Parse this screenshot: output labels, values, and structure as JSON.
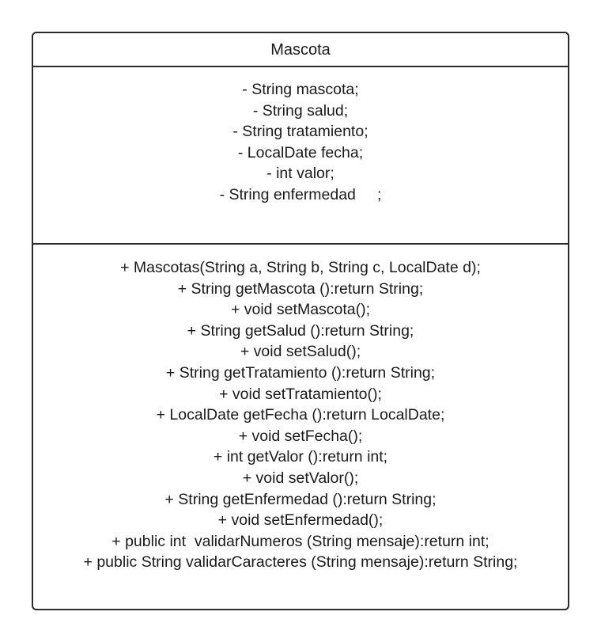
{
  "class": {
    "name": "Mascota",
    "attributes": [
      "- String mascota;",
      "- String salud;",
      "- String tratamiento;",
      "- LocalDate fecha;",
      "- int valor;",
      "- String enfermedad     ;"
    ],
    "methods": [
      "+ Mascotas(String a, String b, String c, LocalDate d);",
      "+ String getMascota ():return String;",
      "+ void setMascota();",
      "+ String getSalud ():return String;",
      "+ void setSalud();",
      "+ String getTratamiento ():return String;",
      "+ void setTratamiento();",
      "+ LocalDate getFecha ():return LocalDate;",
      "+ void setFecha();",
      "+ int getValor ():return int;",
      "+ void setValor();",
      "+ String getEnfermedad ():return String;",
      "+ void setEnfermedad();",
      "+ public int  validarNumeros (String mensaje):return int;",
      "+ public String validarCaracteres (String mensaje):return String;"
    ]
  },
  "colors": {
    "border": "#2b2b2b",
    "text": "#1a1a1a",
    "background": "#ffffff"
  }
}
